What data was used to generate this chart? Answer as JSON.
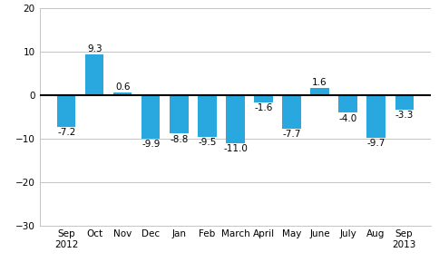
{
  "categories": [
    "Sep\n2012",
    "Oct",
    "Nov",
    "Dec",
    "Jan",
    "Feb",
    "March",
    "April",
    "May",
    "June",
    "July",
    "Aug",
    "Sep\n2013"
  ],
  "values": [
    -7.2,
    9.3,
    0.6,
    -9.9,
    -8.8,
    -9.5,
    -11.0,
    -1.6,
    -7.7,
    1.6,
    -4.0,
    -9.7,
    -3.3
  ],
  "bar_color": "#29a8e0",
  "ylim": [
    -30,
    20
  ],
  "yticks": [
    -30,
    -20,
    -10,
    0,
    10,
    20
  ],
  "background_color": "#ffffff",
  "grid_color": "#bbbbbb",
  "label_fontsize": 7.5,
  "tick_fontsize": 7.5
}
